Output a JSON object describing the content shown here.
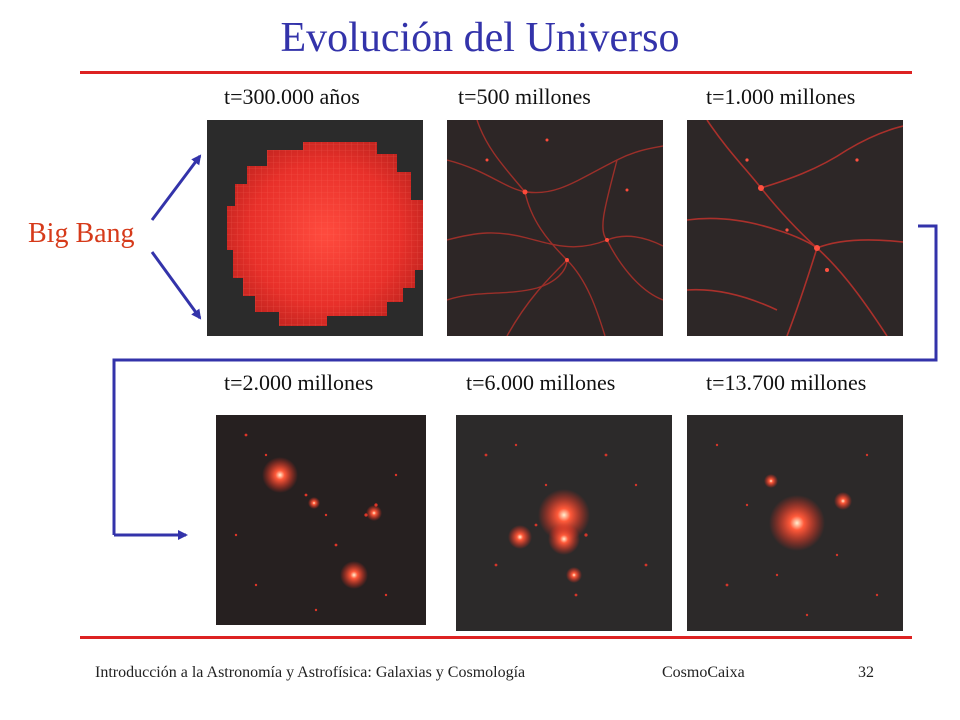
{
  "slide": {
    "title": "Evolución del Universo",
    "big_bang_label": "Big Bang",
    "top_row": [
      {
        "caption": "t=300.000 años"
      },
      {
        "caption": "t=500 millones"
      },
      {
        "caption": "t=1.000 millones"
      }
    ],
    "bottom_row": [
      {
        "caption": "t=2.000 millones"
      },
      {
        "caption": "t=6.000 millones"
      },
      {
        "caption": "t=13.700 millones"
      }
    ]
  },
  "footer": {
    "course": "Introducción a la Astronomía y Astrofísica: Galaxias y Cosmología",
    "venue": "CosmoCaixa",
    "page": "32"
  },
  "colors": {
    "title": "#3333aa",
    "rule": "#dd2222",
    "arrow": "#3333aa",
    "big_bang": "#d63a1a"
  }
}
